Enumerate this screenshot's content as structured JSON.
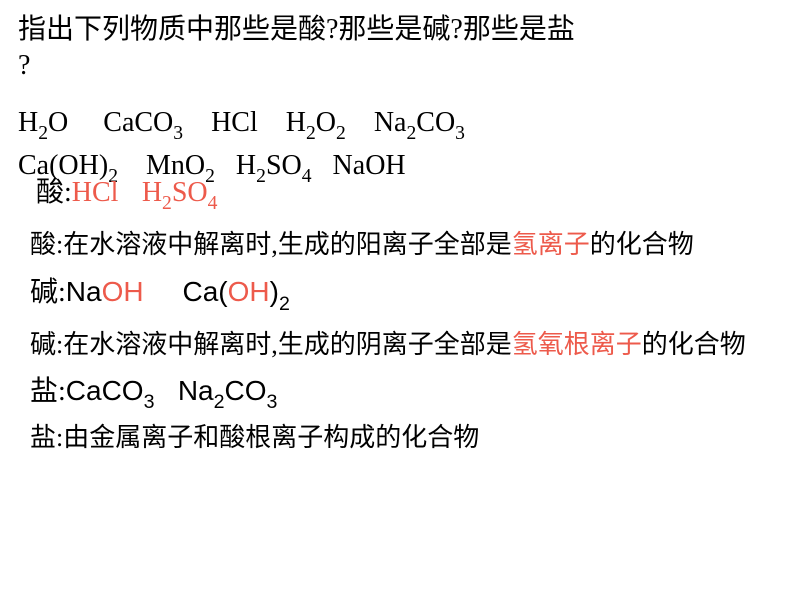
{
  "colors": {
    "text": "#000000",
    "highlight": "#ed5a4b",
    "background": "#ffffff"
  },
  "question": {
    "line1": "指出下列物质中那些是酸?那些是碱?那些是盐",
    "line2": "?"
  },
  "formulas_row1": {
    "f1_a": "H",
    "f1_s1": "2",
    "f1_b": "O",
    "f2_a": "CaCO",
    "f2_s1": "3",
    "f3_a": "HCl",
    "f4_a": "H",
    "f4_s1": "2",
    "f4_b": "O",
    "f4_s2": "2",
    "f5_a": "Na",
    "f5_s1": "2",
    "f5_b": "CO",
    "f5_s2": "3"
  },
  "formulas_row2": {
    "f1_a": "Ca(OH)",
    "f1_s1": "2",
    "f2_a": "MnO",
    "f2_s1": "2",
    "f3_a": "H",
    "f3_s1": "2",
    "f3_b": "SO",
    "f3_s2": "4",
    "f4_a": "NaOH"
  },
  "acid": {
    "label": "酸:",
    "item1": "HCl",
    "item2_a": "H",
    "item2_s1": "2",
    "item2_b": "SO",
    "item2_s2": "4",
    "def_prefix": "酸:在水溶液中解离时,生成的阳离子全部是",
    "def_highlight": "氢离子",
    "def_suffix": "的化合物"
  },
  "base": {
    "label": "碱:",
    "item1_a": "Na",
    "item1_b": "OH",
    "item2_a": "Ca(",
    "item2_b": "OH",
    "item2_c": ")",
    "item2_s1": "2",
    "def_prefix": "碱:在水溶液中解离时,生成的阴离子全部是",
    "def_highlight": "氢氧根离子",
    "def_suffix": "的化合物"
  },
  "salt": {
    "label": "盐:",
    "item1_a": "CaCO",
    "item1_s1": "3",
    "item2_a": "Na",
    "item2_s1": "2",
    "item2_b": "CO",
    "item2_s2": "3",
    "def": "盐:由金属离子和酸根离子构成的化合物"
  }
}
